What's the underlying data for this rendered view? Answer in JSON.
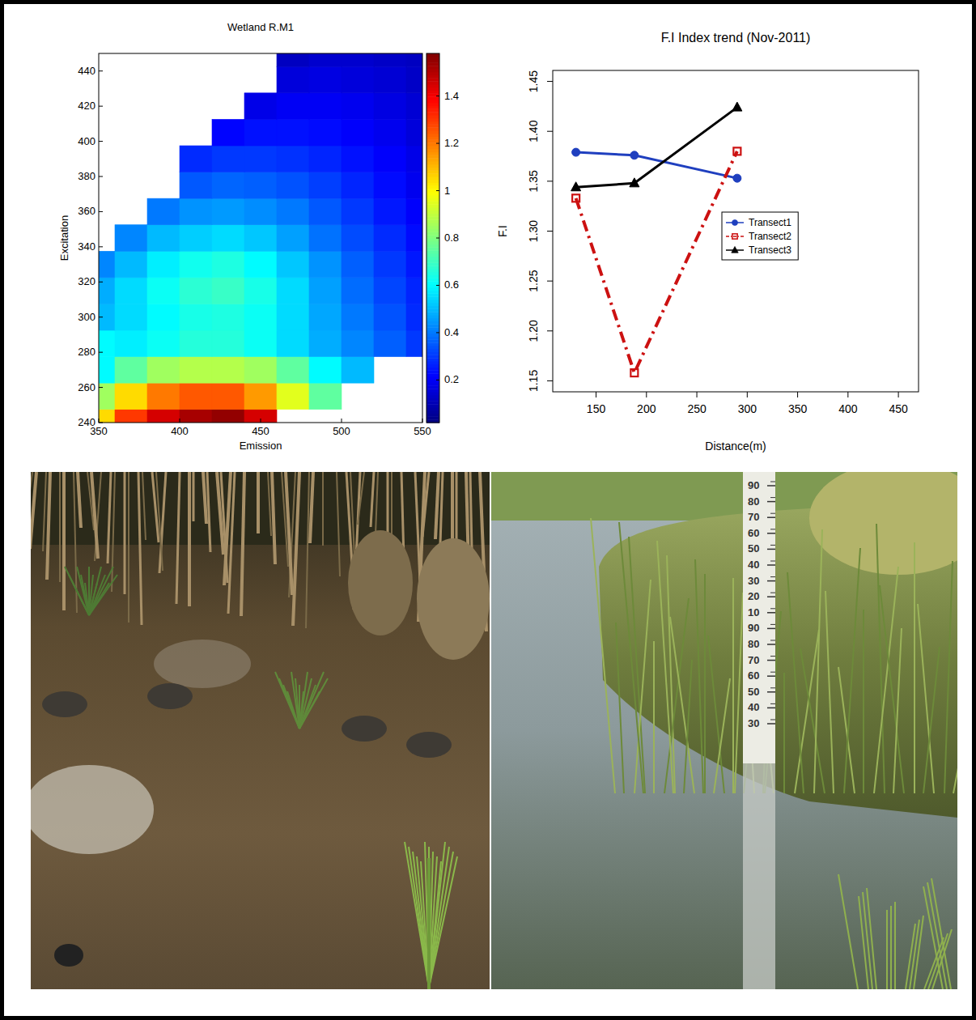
{
  "chart_data": [
    {
      "type": "heatmap",
      "title": "Wetland R.M1",
      "xlabel": "Emission",
      "ylabel": "Excitation",
      "x": [
        350,
        370,
        390,
        410,
        430,
        450,
        470,
        490,
        510,
        530,
        550
      ],
      "y": [
        240,
        255,
        270,
        285,
        300,
        315,
        330,
        345,
        360,
        375,
        390,
        405,
        420,
        435,
        450
      ],
      "cells": [
        [
          1.05,
          1.3,
          1.45,
          1.52,
          1.55,
          1.45,
          null,
          null,
          null,
          null,
          null
        ],
        [
          0.85,
          1.05,
          1.2,
          1.25,
          1.25,
          1.15,
          0.95,
          0.75,
          null,
          null,
          null
        ],
        [
          0.6,
          0.75,
          0.85,
          0.88,
          0.88,
          0.85,
          0.75,
          0.6,
          0.5,
          null,
          null
        ],
        [
          0.6,
          0.58,
          0.62,
          0.66,
          0.66,
          0.62,
          0.55,
          0.48,
          0.42,
          0.36,
          0.3
        ],
        [
          0.5,
          0.55,
          0.6,
          0.64,
          0.65,
          0.62,
          0.55,
          0.47,
          0.4,
          0.34,
          0.28
        ],
        [
          0.48,
          0.55,
          0.62,
          0.67,
          0.69,
          0.64,
          0.55,
          0.46,
          0.38,
          0.32,
          0.27
        ],
        [
          0.42,
          0.5,
          0.58,
          0.63,
          0.65,
          0.6,
          0.52,
          0.44,
          0.36,
          0.3,
          0.25
        ],
        [
          null,
          0.42,
          0.5,
          0.53,
          0.55,
          0.52,
          0.46,
          0.39,
          0.33,
          0.28,
          0.23
        ],
        [
          null,
          null,
          0.4,
          0.44,
          0.45,
          0.43,
          0.4,
          0.35,
          0.3,
          0.25,
          0.21
        ],
        [
          null,
          null,
          null,
          0.35,
          0.37,
          0.36,
          0.34,
          0.31,
          0.27,
          0.23,
          0.19
        ],
        [
          null,
          null,
          null,
          0.28,
          0.3,
          0.3,
          0.29,
          0.27,
          0.24,
          0.21,
          0.18
        ],
        [
          null,
          null,
          null,
          null,
          0.22,
          0.24,
          0.24,
          0.23,
          0.21,
          0.19,
          0.16
        ],
        [
          null,
          null,
          null,
          null,
          null,
          0.18,
          0.2,
          0.2,
          0.19,
          0.17,
          0.15
        ],
        [
          null,
          null,
          null,
          null,
          null,
          null,
          0.16,
          0.17,
          0.16,
          0.15,
          0.13
        ],
        [
          null,
          null,
          null,
          null,
          null,
          null,
          0.12,
          0.14,
          0.14,
          0.13,
          0.12
        ]
      ],
      "xlim": [
        350,
        550
      ],
      "xticks": [
        350,
        400,
        450,
        500,
        550
      ],
      "ylim": [
        240,
        450
      ],
      "yticks": [
        240,
        260,
        280,
        300,
        320,
        340,
        360,
        380,
        400,
        420,
        440
      ],
      "colorbar_range": [
        0.02,
        1.58
      ],
      "colorbar_ticks": [
        0.2,
        0.4,
        0.6,
        0.8,
        1,
        1.2,
        1.4
      ]
    },
    {
      "type": "line",
      "title": "F.I Index trend (Nov-2011)",
      "xlabel": "Distance(m)",
      "ylabel": "F.I",
      "x": [
        130,
        188,
        290
      ],
      "series": [
        {
          "name": "Transect1",
          "color": "#1f3fbf",
          "marker": "circle",
          "line_style": "solid",
          "values": [
            1.379,
            1.376,
            1.353
          ]
        },
        {
          "name": "Transect2",
          "color": "#cc1111",
          "marker": "square",
          "line_style": "dotdash",
          "values": [
            1.333,
            1.158,
            1.38
          ]
        },
        {
          "name": "Transect3",
          "color": "#000000",
          "marker": "triangle",
          "line_style": "solid",
          "values": [
            1.344,
            1.348,
            1.424
          ]
        }
      ],
      "xlim": [
        107,
        470
      ],
      "xticks": [
        150,
        200,
        250,
        300,
        350,
        400,
        450
      ],
      "ylim": [
        1.139,
        1.461
      ],
      "yticks": [
        1.15,
        {
          "value": 1.2,
          "label": "1.20"
        },
        1.25,
        {
          "value": 1.3,
          "label": "1.30"
        },
        1.35,
        {
          "value": 1.4,
          "label": "1.40"
        },
        1.45
      ],
      "legend": "right"
    }
  ],
  "photo_gauge": {
    "labels": [
      "90",
      "80",
      "70",
      "60",
      "50",
      "40",
      "30",
      "20",
      "10",
      "90",
      "80",
      "70",
      "60",
      "50",
      "40",
      "30"
    ]
  }
}
